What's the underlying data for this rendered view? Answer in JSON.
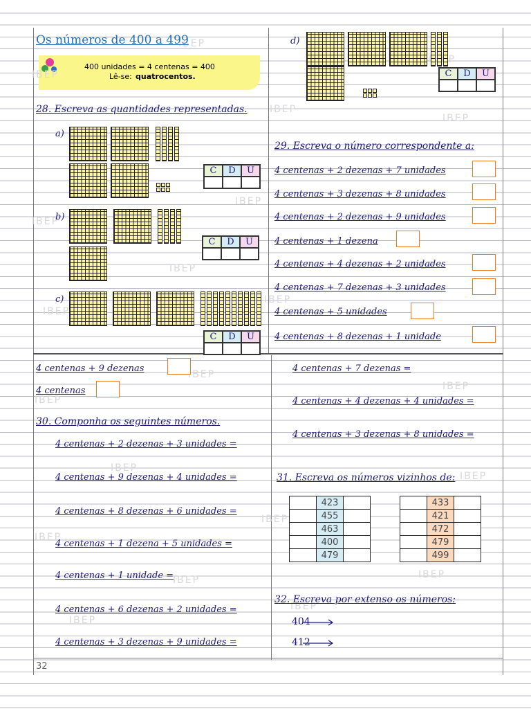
{
  "header": {
    "title": "Os números de 400 a 499",
    "box_line": "400 unidades = 4 centenas = 400",
    "read_prefix": "Lê-se:",
    "read_word": "quatrocentos."
  },
  "watermark": "IBEP",
  "place_value": {
    "hundreds": "C",
    "tens": "D",
    "units": "U"
  },
  "ex28": {
    "title": "28. Escreva as quantidades representadas.",
    "items": [
      "a)",
      "b)",
      "c)",
      "d)"
    ]
  },
  "ex29": {
    "title": "29. Escreva o número correspondente a:",
    "items": [
      "4 centenas + 2 dezenas + 7 unidades",
      "4 centenas + 3 dezenas + 8 unidades",
      "4 centenas + 2 dezenas + 9 unidades",
      "4 centenas + 1 dezena",
      "4 centenas + 4 dezenas + 2 unidades",
      "4 centenas + 7 dezenas + 3 unidades",
      "4 centenas + 5 unidades",
      "4 centenas + 8 dezenas + 1 unidade",
      "4 centenas + 9 dezenas",
      "4 centenas"
    ]
  },
  "ex30": {
    "title": "30. Componha os seguintes números.",
    "items": [
      "4 centenas + 2 dezenas + 3 unidades =",
      "4 centenas + 9 dezenas + 4 unidades =",
      "4 centenas + 8 dezenas + 6 unidades =",
      "4 centenas + 1 dezena + 5 unidades =",
      "4 centenas + 1 unidade =",
      "4 centenas + 6 dezenas + 2 unidades =",
      "4 centenas + 3 dezenas + 9 unidades =",
      "4 centenas + 7 dezenas =",
      "4 centenas + 4 dezenas + 4 unidades =",
      "4 centenas + 3 dezenas + 8 unidades ="
    ]
  },
  "ex31": {
    "title": "31. Escreva os números vizinhos de:",
    "table1": [
      423,
      455,
      463,
      400,
      479
    ],
    "table2": [
      433,
      421,
      472,
      479,
      499
    ]
  },
  "ex32": {
    "title": "32. Escreva por extenso os números:",
    "items": [
      404,
      412
    ]
  },
  "page_number": 32
}
